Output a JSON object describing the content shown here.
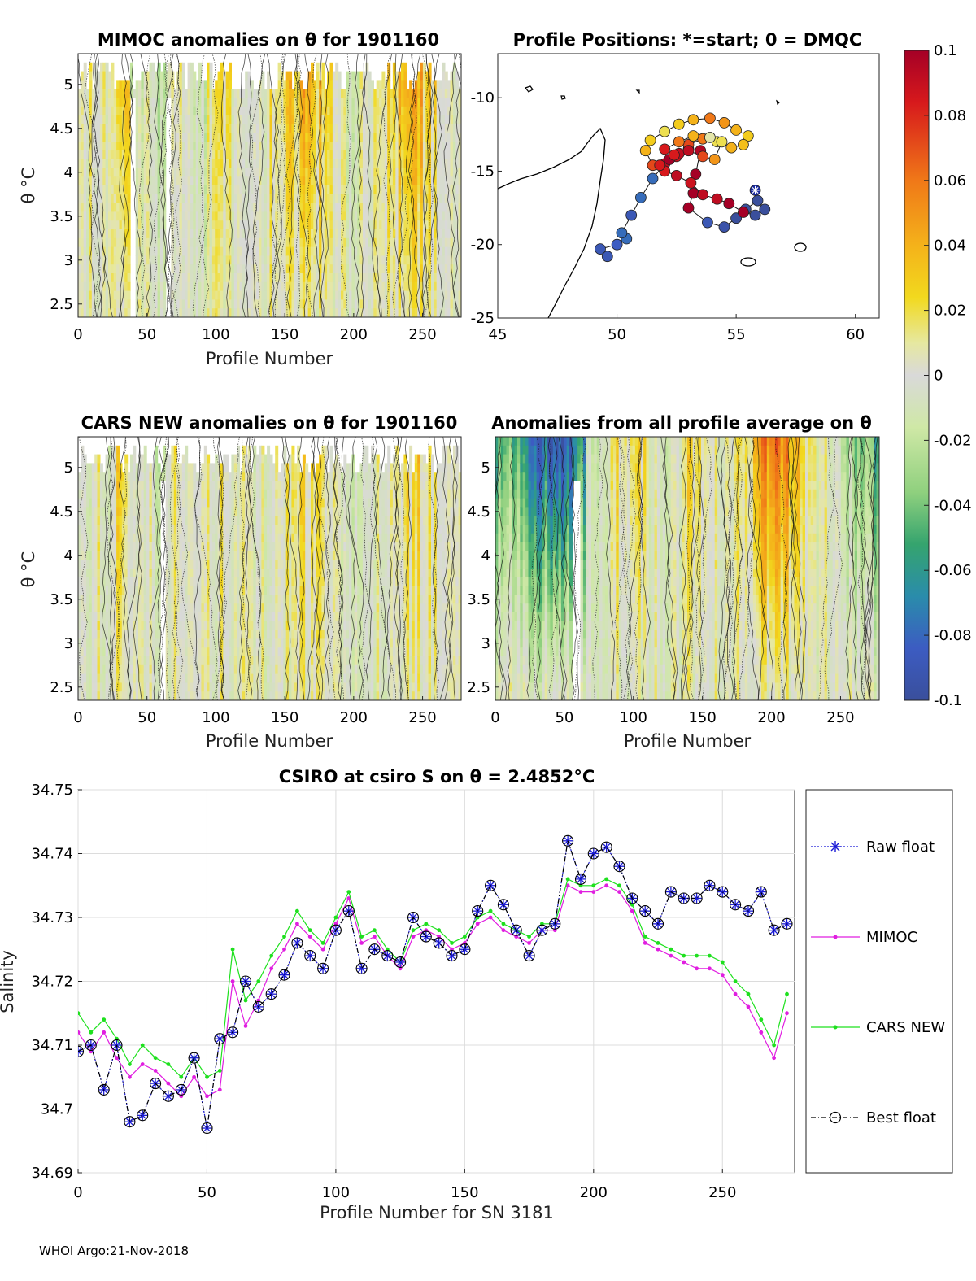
{
  "footer": "WHOI Argo:21-Nov-2018",
  "chart_data": [
    {
      "id": "mimoc",
      "type": "heatmap",
      "title": "MIMOC anomalies on θ  for 1901160",
      "xlabel": "Profile Number",
      "ylabel": "θ °C",
      "xlim": [
        0,
        278
      ],
      "ylim": [
        2.35,
        5.35
      ],
      "xticks": [
        "0",
        "50",
        "100",
        "150",
        "200",
        "250"
      ],
      "yticks": [
        "2.5",
        "3",
        "3.5",
        "4",
        "4.5",
        "5"
      ],
      "anomaly_by_profile_band": [
        0.005,
        0.01,
        -0.005,
        0.03,
        -0.01,
        0.0,
        -0.02,
        0.015,
        0.0,
        -0.01,
        0.01,
        0.02,
        0.005,
        -0.01,
        0.0,
        0.015,
        0.03,
        0.04,
        0.035,
        0.02,
        0.0,
        -0.01,
        0.0,
        0.01,
        0.02,
        0.035,
        0.04,
        0.025,
        0.005,
        0.0
      ]
    },
    {
      "id": "positions",
      "type": "scatter",
      "title": "Profile Positions: *=start; 0 = DMQC",
      "xlim": [
        45,
        61
      ],
      "ylim": [
        -25,
        -7
      ],
      "xticks": [
        "45",
        "50",
        "55",
        "60"
      ],
      "yticks": [
        "-10",
        "-15",
        "-20",
        "-25"
      ],
      "x": [
        49.6,
        49.3,
        50.0,
        50.4,
        50.2,
        50.6,
        51.0,
        51.5,
        52.0,
        52.5,
        53.0,
        53.5,
        53.3,
        53.2,
        53.0,
        53.8,
        54.5,
        55.0,
        55.4,
        55.9,
        56.2,
        55.8,
        55.3,
        54.7,
        54.2,
        53.6,
        53.1,
        52.5,
        52.0,
        51.5,
        51.2,
        51.4,
        52.0,
        52.6,
        53.2,
        53.9,
        54.5,
        55.0,
        55.5,
        55.3,
        54.8,
        54.2,
        53.6,
        53.0,
        52.6,
        52.2,
        51.8,
        52.4,
        53.0,
        53.6,
        54.1,
        54.4,
        53.9,
        53.2,
        52.6,
        52.0
      ],
      "y": [
        -20.8,
        -20.3,
        -20.0,
        -19.6,
        -19.2,
        -18.0,
        -16.8,
        -15.5,
        -14.5,
        -14.0,
        -13.5,
        -13.6,
        -15.2,
        -16.5,
        -17.5,
        -18.5,
        -18.8,
        -18.2,
        -17.6,
        -17.0,
        -17.6,
        -18.0,
        -17.8,
        -17.2,
        -16.9,
        -16.6,
        -15.8,
        -15.3,
        -15.0,
        -14.6,
        -13.6,
        -12.9,
        -12.3,
        -11.8,
        -11.5,
        -11.4,
        -11.7,
        -12.2,
        -12.6,
        -13.2,
        -13.4,
        -13.0,
        -12.8,
        -13.2,
        -13.8,
        -14.2,
        -14.6,
        -13.9,
        -13.6,
        -14.0,
        -14.2,
        -13.0,
        -12.7,
        -12.6,
        -13.0,
        -13.5
      ],
      "anomaly": [
        -0.09,
        -0.09,
        -0.085,
        -0.08,
        -0.08,
        -0.09,
        -0.08,
        -0.08,
        0.09,
        0.085,
        0.09,
        0.095,
        0.1,
        0.1,
        0.1,
        -0.09,
        -0.095,
        -0.1,
        -0.1,
        -0.1,
        -0.1,
        -0.1,
        0.1,
        0.1,
        0.09,
        0.09,
        0.085,
        0.09,
        0.08,
        0.07,
        0.04,
        0.03,
        0.02,
        0.03,
        0.04,
        0.06,
        0.05,
        0.04,
        0.03,
        0.035,
        0.04,
        0.02,
        0.06,
        0.07,
        0.09,
        0.1,
        0.08,
        0.08,
        0.09,
        0.07,
        0.05,
        0.02,
        0.01,
        0.04,
        0.06,
        0.08
      ],
      "start": [
        55.8,
        -16.3
      ]
    },
    {
      "id": "colorbar",
      "type": "colorbar",
      "ticks": [
        "0.1",
        "0.08",
        "0.06",
        "0.04",
        "0.02",
        "0",
        "-0.02",
        "-0.04",
        "-0.06",
        "-0.08",
        "-0.1"
      ],
      "range": [
        -0.1,
        0.1
      ]
    },
    {
      "id": "cars",
      "type": "heatmap",
      "title": "CARS NEW anomalies on θ for 1901160",
      "xlabel": "Profile Number",
      "ylabel": "θ °C",
      "xlim": [
        0,
        278
      ],
      "ylim": [
        2.35,
        5.35
      ],
      "xticks": [
        "0",
        "50",
        "100",
        "150",
        "200",
        "250"
      ],
      "yticks": [
        "2.5",
        "3",
        "3.5",
        "4",
        "4.5",
        "5"
      ],
      "anomaly_by_profile_band": [
        -0.005,
        0.005,
        -0.01,
        0.02,
        -0.015,
        0.0,
        -0.02,
        0.01,
        0.0,
        -0.005,
        0.005,
        0.01,
        0.0,
        -0.01,
        0.0,
        0.005,
        0.01,
        0.02,
        0.015,
        0.005,
        0.0,
        -0.01,
        0.0,
        0.005,
        0.01,
        0.02,
        0.025,
        0.01,
        0.0,
        -0.005
      ]
    },
    {
      "id": "allavg",
      "type": "heatmap",
      "title": "Anomalies from all profile average on θ",
      "xlabel": "Profile Number",
      "xlim": [
        0,
        278
      ],
      "ylim": [
        2.35,
        5.35
      ],
      "xticks": [
        "0",
        "50",
        "100",
        "150",
        "200",
        "250"
      ],
      "yticks": [
        "2.5",
        "3",
        "3.5",
        "4",
        "4.5",
        "5"
      ],
      "anomaly_by_profile_band": [
        -0.05,
        -0.05,
        -0.07,
        -0.08,
        -0.09,
        -0.09,
        -0.06,
        -0.01,
        0.0,
        0.015,
        0.02,
        0.02,
        0.0,
        -0.005,
        0.005,
        0.02,
        0.01,
        0.0,
        0.01,
        0.02,
        0.045,
        0.055,
        0.05,
        0.035,
        0.01,
        0.0,
        -0.01,
        -0.03,
        -0.04,
        -0.05
      ]
    },
    {
      "id": "salinity",
      "type": "line",
      "title": "CSIRO at csiro S on θ = 2.4852°C",
      "xlabel": "Profile Number for SN 3181",
      "ylabel": "Salinity",
      "xlim": [
        0,
        278
      ],
      "ylim": [
        34.69,
        34.75
      ],
      "xticks": [
        "0",
        "50",
        "100",
        "150",
        "200",
        "250"
      ],
      "yticks": [
        "34.69",
        "34.7",
        "34.71",
        "34.72",
        "34.73",
        "34.74",
        "34.75"
      ],
      "x": [
        0,
        5,
        10,
        15,
        20,
        25,
        30,
        35,
        40,
        45,
        50,
        55,
        60,
        65,
        70,
        75,
        80,
        85,
        90,
        95,
        100,
        105,
        110,
        115,
        120,
        125,
        130,
        135,
        140,
        145,
        150,
        155,
        160,
        165,
        170,
        175,
        180,
        185,
        190,
        195,
        200,
        205,
        210,
        215,
        220,
        225,
        230,
        235,
        240,
        245,
        250,
        255,
        260,
        265,
        270,
        275
      ],
      "series": [
        {
          "name": "Raw float",
          "color": "#1a1ad6",
          "values": [
            34.709,
            34.71,
            34.703,
            34.71,
            34.698,
            34.699,
            34.704,
            34.702,
            34.703,
            34.708,
            34.697,
            34.711,
            34.712,
            34.72,
            34.716,
            34.718,
            34.721,
            34.726,
            34.724,
            34.722,
            34.728,
            34.731,
            34.722,
            34.725,
            34.724,
            34.723,
            34.73,
            34.727,
            34.726,
            34.724,
            34.725,
            34.731,
            34.735,
            34.732,
            34.728,
            34.724,
            34.728,
            34.729,
            34.742,
            34.736,
            34.74,
            34.741,
            34.738,
            34.733,
            34.731,
            34.729,
            34.734,
            34.733,
            34.733,
            34.735,
            34.734,
            34.732,
            34.731,
            34.734,
            34.728,
            34.729
          ]
        },
        {
          "name": "MIMOC",
          "color": "#e01ee0",
          "values": [
            34.712,
            34.709,
            34.712,
            34.708,
            34.705,
            34.707,
            34.706,
            34.704,
            34.702,
            34.705,
            34.702,
            34.703,
            34.72,
            34.713,
            34.717,
            34.722,
            34.725,
            34.729,
            34.727,
            34.725,
            34.729,
            34.733,
            34.726,
            34.727,
            34.724,
            34.722,
            34.727,
            34.728,
            34.727,
            34.725,
            34.726,
            34.729,
            34.73,
            34.728,
            34.727,
            34.726,
            34.728,
            34.728,
            34.735,
            34.734,
            34.734,
            34.735,
            34.734,
            34.731,
            34.726,
            34.725,
            34.724,
            34.723,
            34.722,
            34.722,
            34.721,
            34.718,
            34.716,
            34.712,
            34.708,
            34.715
          ]
        },
        {
          "name": "CARS NEW",
          "color": "#1ee01e",
          "values": [
            34.715,
            34.712,
            34.714,
            34.711,
            34.707,
            34.71,
            34.708,
            34.707,
            34.705,
            34.708,
            34.705,
            34.706,
            34.725,
            34.717,
            34.72,
            34.724,
            34.727,
            34.731,
            34.728,
            34.726,
            34.73,
            34.734,
            34.727,
            34.728,
            34.725,
            34.723,
            34.728,
            34.729,
            34.728,
            34.726,
            34.727,
            34.73,
            34.731,
            34.729,
            34.728,
            34.727,
            34.729,
            34.729,
            34.736,
            34.735,
            34.735,
            34.736,
            34.735,
            34.732,
            34.727,
            34.726,
            34.725,
            34.724,
            34.724,
            34.724,
            34.723,
            34.72,
            34.718,
            34.714,
            34.71,
            34.718
          ]
        },
        {
          "name": "Best float",
          "color": "#000000",
          "values": [
            34.709,
            34.71,
            34.703,
            34.71,
            34.698,
            34.699,
            34.704,
            34.702,
            34.703,
            34.708,
            34.697,
            34.711,
            34.712,
            34.72,
            34.716,
            34.718,
            34.721,
            34.726,
            34.724,
            34.722,
            34.728,
            34.731,
            34.722,
            34.725,
            34.724,
            34.723,
            34.73,
            34.727,
            34.726,
            34.724,
            34.725,
            34.731,
            34.735,
            34.732,
            34.728,
            34.724,
            34.728,
            34.729,
            34.742,
            34.736,
            34.74,
            34.741,
            34.738,
            34.733,
            34.731,
            34.729,
            34.734,
            34.733,
            34.733,
            34.735,
            34.734,
            34.732,
            34.731,
            34.734,
            34.728,
            34.729
          ]
        }
      ]
    }
  ]
}
